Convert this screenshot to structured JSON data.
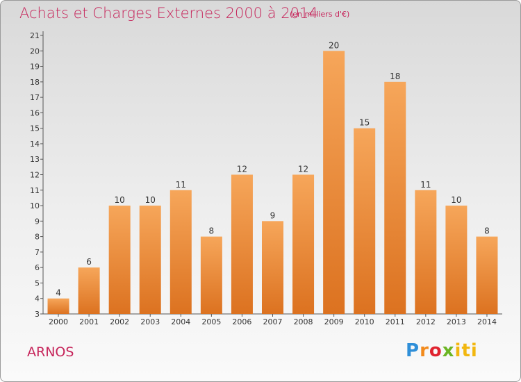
{
  "header": {
    "title": "Achats et Charges Externes 2000 à 2014",
    "unit": "(en milliers d'€)"
  },
  "footer": {
    "commune": "ARNOS",
    "logo_parts": [
      "P",
      "r",
      "o",
      "x",
      "iti"
    ]
  },
  "colors": {
    "title": "#c6245a",
    "bar_top": "#f6a65a",
    "bar_bottom": "#dc7220"
  },
  "chart_data": {
    "type": "bar",
    "categories": [
      "2000",
      "2001",
      "2002",
      "2003",
      "2004",
      "2005",
      "2006",
      "2007",
      "2008",
      "2009",
      "2010",
      "2011",
      "2012",
      "2013",
      "2014"
    ],
    "values": [
      4,
      6,
      10,
      10,
      11,
      8,
      12,
      9,
      12,
      20,
      15,
      18,
      11,
      10,
      8
    ],
    "title": "Achats et Charges Externes 2000 à 2014",
    "xlabel": "",
    "ylabel": "",
    "ylim": [
      3,
      21
    ],
    "yticks": [
      3,
      4,
      5,
      6,
      7,
      8,
      9,
      10,
      11,
      12,
      13,
      14,
      15,
      16,
      17,
      18,
      19,
      20,
      21
    ],
    "grid": false,
    "legend": "none"
  }
}
